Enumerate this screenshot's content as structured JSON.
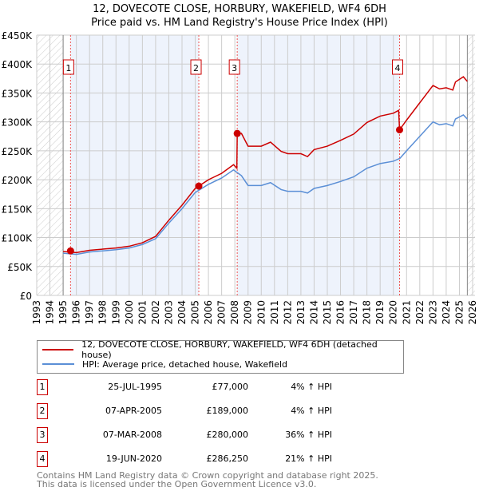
{
  "header": {
    "title": "12, DOVECOTE CLOSE, HORBURY, WAKEFIELD, WF4 6DH",
    "subtitle": "Price paid vs. HM Land Registry's House Price Index (HPI)"
  },
  "chart_data": {
    "type": "line",
    "title": "12, DOVECOTE CLOSE, HORBURY, WAKEFIELD, WF4 6DH",
    "subtitle": "Price paid vs. HM Land Registry's House Price Index (HPI)",
    "xlim": [
      1993,
      2026
    ],
    "ylim": [
      0,
      450000
    ],
    "x_ticks": [
      "1993",
      "1994",
      "1995",
      "1996",
      "1997",
      "1998",
      "1999",
      "2000",
      "2001",
      "2002",
      "2003",
      "2004",
      "2005",
      "2006",
      "2007",
      "2008",
      "2009",
      "2010",
      "2011",
      "2012",
      "2013",
      "2014",
      "2015",
      "2016",
      "2017",
      "2018",
      "2019",
      "2020",
      "2021",
      "2022",
      "2023",
      "2024",
      "2025",
      "2026"
    ],
    "y_ticks": [
      {
        "v": 0,
        "label": "£0"
      },
      {
        "v": 50000,
        "label": "£50K"
      },
      {
        "v": 100000,
        "label": "£100K"
      },
      {
        "v": 150000,
        "label": "£150K"
      },
      {
        "v": 200000,
        "label": "£200K"
      },
      {
        "v": 250000,
        "label": "£250K"
      },
      {
        "v": 300000,
        "label": "£300K"
      },
      {
        "v": 350000,
        "label": "£350K"
      },
      {
        "v": 400000,
        "label": "£400K"
      },
      {
        "v": 450000,
        "label": "£450K"
      }
    ],
    "grid": true,
    "data_start": 1995,
    "data_end": 2025.6,
    "series": [
      {
        "name": "12, DOVECOTE CLOSE, HORBURY, WAKEFIELD, WF4 6DH (detached house)",
        "color": "#cc0000",
        "points": [
          [
            1995,
            76000
          ],
          [
            1996,
            74000
          ],
          [
            1997,
            78000
          ],
          [
            1998,
            80000
          ],
          [
            1999,
            82000
          ],
          [
            2000,
            85000
          ],
          [
            2001,
            91000
          ],
          [
            2002,
            102000
          ],
          [
            2003,
            130000
          ],
          [
            2004,
            156000
          ],
          [
            2005,
            185000
          ],
          [
            2005.27,
            189000
          ],
          [
            2006,
            200000
          ],
          [
            2007,
            211000
          ],
          [
            2007.9,
            226000
          ],
          [
            2008.15,
            220000
          ],
          [
            2008.18,
            280000
          ],
          [
            2008.5,
            280000
          ],
          [
            2009,
            258000
          ],
          [
            2010,
            258000
          ],
          [
            2010.7,
            265000
          ],
          [
            2011.5,
            249000
          ],
          [
            2012,
            245000
          ],
          [
            2013,
            245000
          ],
          [
            2013.5,
            240000
          ],
          [
            2014,
            252000
          ],
          [
            2015,
            258000
          ],
          [
            2016,
            268000
          ],
          [
            2017,
            279000
          ],
          [
            2018,
            299000
          ],
          [
            2019,
            310000
          ],
          [
            2020,
            315000
          ],
          [
            2020.4,
            320000
          ],
          [
            2020.47,
            286250
          ],
          [
            2021,
            303000
          ],
          [
            2022,
            333000
          ],
          [
            2023,
            363000
          ],
          [
            2023.5,
            357000
          ],
          [
            2024,
            359000
          ],
          [
            2024.5,
            355000
          ],
          [
            2024.7,
            369000
          ],
          [
            2025.3,
            378000
          ],
          [
            2025.6,
            370000
          ]
        ]
      },
      {
        "name": "HPI: Average price, detached house, Wakefield",
        "color": "#5b8fd6",
        "points": [
          [
            1995,
            73000
          ],
          [
            1996,
            71000
          ],
          [
            1997,
            75000
          ],
          [
            1998,
            77000
          ],
          [
            1999,
            79000
          ],
          [
            2000,
            82000
          ],
          [
            2001,
            88000
          ],
          [
            2002,
            98000
          ],
          [
            2003,
            125000
          ],
          [
            2004,
            150000
          ],
          [
            2005,
            178000
          ],
          [
            2006,
            192000
          ],
          [
            2007,
            203000
          ],
          [
            2007.9,
            217000
          ],
          [
            2008.5,
            207000
          ],
          [
            2009,
            190000
          ],
          [
            2010,
            190000
          ],
          [
            2010.7,
            195000
          ],
          [
            2011.5,
            183000
          ],
          [
            2012,
            180000
          ],
          [
            2013,
            180000
          ],
          [
            2013.5,
            177000
          ],
          [
            2014,
            185000
          ],
          [
            2015,
            190000
          ],
          [
            2016,
            197000
          ],
          [
            2017,
            205000
          ],
          [
            2018,
            220000
          ],
          [
            2019,
            228000
          ],
          [
            2020,
            232000
          ],
          [
            2020.5,
            237000
          ],
          [
            2021,
            250000
          ],
          [
            2022,
            275000
          ],
          [
            2023,
            300000
          ],
          [
            2023.5,
            295000
          ],
          [
            2024,
            297000
          ],
          [
            2024.5,
            293000
          ],
          [
            2024.7,
            305000
          ],
          [
            2025.3,
            312000
          ],
          [
            2025.6,
            305000
          ]
        ]
      }
    ],
    "sales": [
      {
        "n": "1",
        "x": 1995.56,
        "price": 77000,
        "date": "25-JUL-1995",
        "price_label": "£77,000",
        "hpi": "4% ↑ HPI"
      },
      {
        "n": "2",
        "x": 2005.27,
        "price": 189000,
        "date": "07-APR-2005",
        "price_label": "£189,000",
        "hpi": "4% ↑ HPI"
      },
      {
        "n": "3",
        "x": 2008.18,
        "price": 280000,
        "date": "07-MAR-2008",
        "price_label": "£280,000",
        "hpi": "36% ↑ HPI"
      },
      {
        "n": "4",
        "x": 2020.47,
        "price": 286250,
        "date": "19-JUN-2020",
        "price_label": "£286,250",
        "hpi": "21% ↑ HPI"
      }
    ],
    "legend_position": "below"
  },
  "legend": {
    "red": "12, DOVECOTE CLOSE, HORBURY, WAKEFIELD, WF4 6DH (detached house)",
    "blue": "HPI: Average price, detached house, Wakefield"
  },
  "footer": {
    "line1": "Contains HM Land Registry data © Crown copyright and database right 2025.",
    "line2": "This data is licensed under the Open Government Licence v3.0."
  }
}
